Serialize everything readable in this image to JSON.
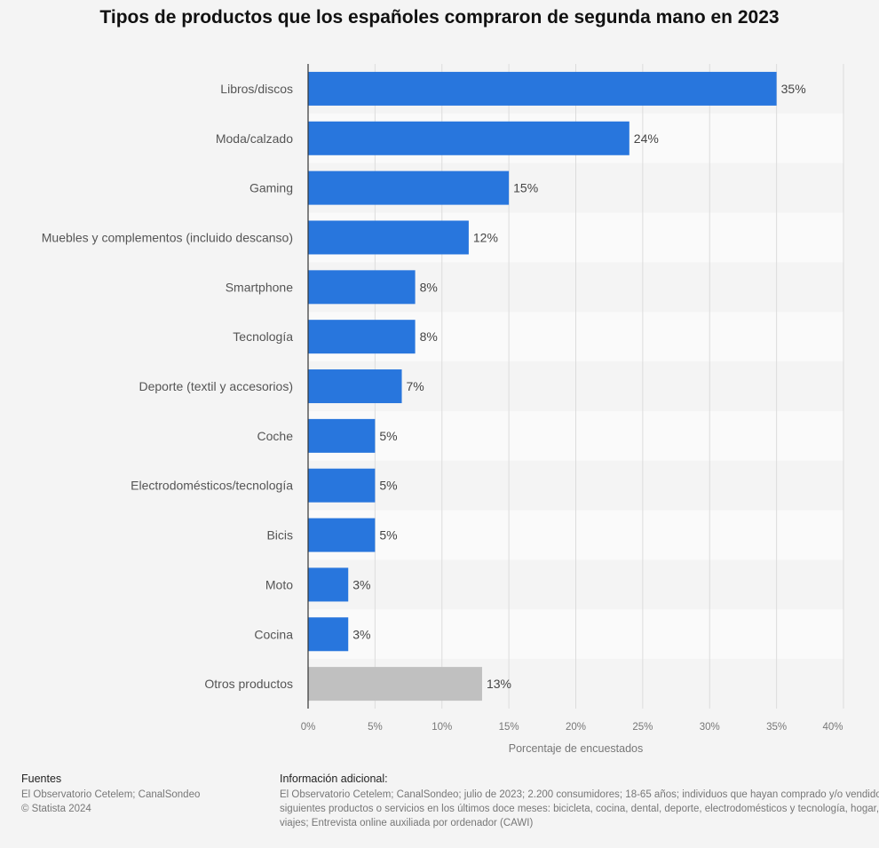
{
  "title": "Tipos de productos que los españoles compraron de segunda mano en 2023",
  "chart_data": {
    "type": "bar",
    "orientation": "horizontal",
    "title": "Tipos de productos que los españoles compraron de segunda mano en 2023",
    "xlabel": "Porcentaje de encuestados",
    "ylabel": "",
    "xlim": [
      0,
      40
    ],
    "ticks": [
      "0%",
      "5%",
      "10%",
      "15%",
      "20%",
      "25%",
      "30%",
      "35%",
      "40%"
    ],
    "categories": [
      "Libros/discos",
      "Moda/calzado",
      "Gaming",
      "Muebles y complementos (incluido descanso)",
      "Smartphone",
      "Tecnología",
      "Deporte (textil y accesorios)",
      "Coche",
      "Electrodomésticos/tecnología",
      "Bicis",
      "Moto",
      "Cocina",
      "Otros productos"
    ],
    "values": [
      35,
      24,
      15,
      12,
      8,
      8,
      7,
      5,
      5,
      5,
      3,
      3,
      13
    ],
    "value_labels": [
      "35%",
      "24%",
      "15%",
      "12%",
      "8%",
      "8%",
      "7%",
      "5%",
      "5%",
      "5%",
      "3%",
      "3%",
      "13%"
    ],
    "colors": {
      "bar": "#2876dd",
      "highlight_bar": "#c0c0c0",
      "highlight_category": "Otros productos"
    },
    "grid": true,
    "legend": "none"
  },
  "footer": {
    "sources_heading": "Fuentes",
    "sources_lines": [
      "El Observatorio Cetelem; CanalSondeo",
      "© Statista 2024"
    ],
    "info_heading": "Información adicional:",
    "info_lines": [
      "El Observatorio Cetelem; CanalSondeo; julio de 2023; 2.200 consumidores; 18-65 años; individuos que hayan comprado y/o vendido alguno de los",
      "siguientes productos o servicios en los últimos doce meses: bicicleta, cocina, dental, deporte, electrodomésticos y tecnología, hogar, moda, móvil,",
      "viajes; Entrevista online auxiliada por ordenador (CAWI)"
    ]
  }
}
